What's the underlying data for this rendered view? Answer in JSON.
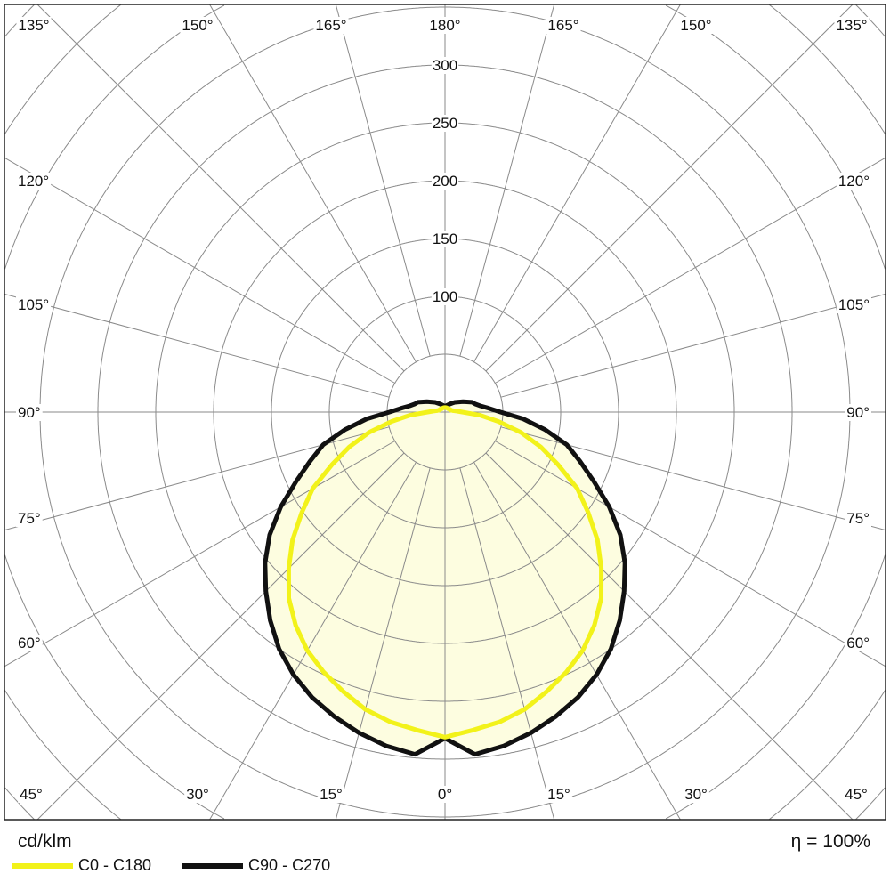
{
  "chart_data": {
    "type": "polar",
    "unit_label": "cd/klm",
    "efficiency_label": "η = 100%",
    "radial_ticks": [
      100,
      150,
      200,
      250,
      300
    ],
    "radial_circles": [
      50,
      100,
      150,
      200,
      250,
      300,
      350,
      400,
      450,
      500,
      550,
      600,
      650
    ],
    "angle_step_deg": 15,
    "angle_labels": {
      "top": [
        "135°",
        "150°",
        "165°",
        "180°",
        "165°",
        "150°",
        "135°"
      ],
      "left": [
        "120°",
        "105°",
        "90°",
        "75°",
        "60°"
      ],
      "right": [
        "120°",
        "105°",
        "90°",
        "75°",
        "60°"
      ],
      "bottom": [
        "45°",
        "30°",
        "15°",
        "0°",
        "15°",
        "30°",
        "45°"
      ]
    },
    "gamma_deg": [
      0,
      5,
      10,
      15,
      20,
      25,
      30,
      35,
      40,
      45,
      50,
      55,
      60,
      65,
      70,
      75,
      80,
      85,
      90,
      95,
      100,
      105,
      110,
      120,
      135,
      150,
      165,
      180
    ],
    "series": [
      {
        "name": "C0 - C180",
        "color": "#f2f21a",
        "values": [
          281,
          276,
          272,
          266,
          257,
          248,
          238,
          225,
          210,
          191,
          172,
          151,
          132,
          108,
          88,
          68,
          47,
          30,
          15,
          10,
          7,
          6,
          5,
          5,
          4,
          4,
          4,
          4
        ]
      },
      {
        "name": "C90 - C270",
        "color": "#111111",
        "values": [
          282,
          297,
          293,
          287,
          280,
          272,
          262,
          250,
          235,
          219,
          203,
          185,
          164,
          142,
          124,
          109,
          88,
          68,
          48,
          38,
          31,
          27,
          25,
          18,
          12,
          8,
          6,
          5
        ]
      }
    ],
    "fill_color": "#fdfde0",
    "grid": true
  }
}
